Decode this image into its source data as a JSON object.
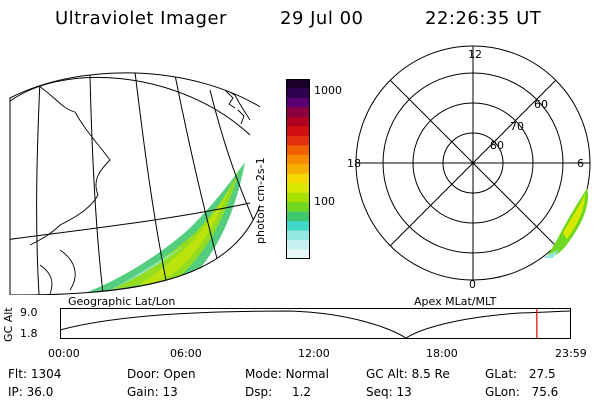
{
  "header": {
    "title": "Ultraviolet Imager",
    "date": "29 Jul 00",
    "time": "22:26:35 UT"
  },
  "colorbar": {
    "unit": "photon cm-2s-1",
    "tick_high": "1000",
    "tick_mid": "100",
    "colors": [
      "#1a0026",
      "#300050",
      "#5a0070",
      "#8a0040",
      "#b00020",
      "#d01010",
      "#e03010",
      "#f06000",
      "#f88a00",
      "#f8b000",
      "#f0d800",
      "#d8e800",
      "#a8e000",
      "#70d820",
      "#40c870",
      "#40d8c8",
      "#90e8e0",
      "#c8f0f0",
      "#e8f8f8"
    ]
  },
  "polar": {
    "lat_labels": [
      "80",
      "70",
      "60"
    ],
    "mlt_labels": {
      "top": "12",
      "left": "18",
      "right": "6",
      "bottom": "0"
    }
  },
  "panel_labels": {
    "left": "Geographic Lat/Lon",
    "right": "Apex MLat/MLT"
  },
  "timeline": {
    "ylabel": "GC Alt",
    "ytick_top": "9.0",
    "ytick_bottom": "1.8",
    "xticks": [
      "00:00",
      "06:00",
      "12:00",
      "18:00",
      "23:59"
    ],
    "current_marker_hours": 22.44
  },
  "info": {
    "flt_label": "Flt:",
    "flt_value": "1304",
    "ip_label": "IP:",
    "ip_value": "36.0",
    "door_label": "Door:",
    "door_value": "Open",
    "gain_label": "Gain:",
    "gain_value": "13",
    "mode_label": "Mode:",
    "mode_value": "Normal",
    "dsp_label": "Dsp:",
    "dsp_value": "1.2",
    "gcalt_label": "GC Alt:",
    "gcalt_value": "8.5 Re",
    "seq_label": "Seq:",
    "seq_value": "13",
    "glat_label": "GLat:",
    "glat_value": "27.5",
    "glon_label": "GLon:",
    "glon_value": "75.6"
  }
}
